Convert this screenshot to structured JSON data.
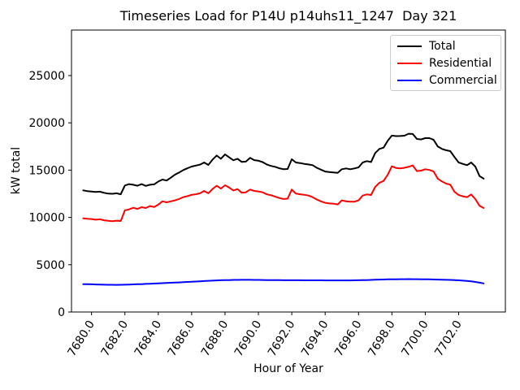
{
  "chart_data": {
    "type": "line",
    "title": "Timeseries Load for P14U p14uhs11_1247  Day 321",
    "xlabel": "Hour of Year",
    "ylabel": "kW total",
    "grid": false,
    "legend_position": "upper right",
    "legend_entries": [
      "Total",
      "Residential",
      "Commercial"
    ],
    "xlim": [
      7678.8,
      7704.8
    ],
    "ylim": [
      0,
      29810
    ],
    "xticks": {
      "values": [
        7680,
        7682,
        7684,
        7686,
        7688,
        7690,
        7692,
        7694,
        7696,
        7698,
        7700,
        7702
      ],
      "labels": [
        "7680.0",
        "7682.0",
        "7684.0",
        "7686.0",
        "7688.0",
        "7690.0",
        "7692.0",
        "7694.0",
        "7696.0",
        "7698.0",
        "7700.0",
        "7702.0"
      ]
    },
    "yticks": {
      "values": [
        0,
        5000,
        10000,
        15000,
        20000,
        25000
      ],
      "labels": [
        "0",
        "5000",
        "10000",
        "15000",
        "20000",
        "25000"
      ]
    },
    "x": [
      7679.5,
      7679.75,
      7680,
      7680.25,
      7680.5,
      7680.75,
      7681,
      7681.25,
      7681.5,
      7681.75,
      7682,
      7682.25,
      7682.5,
      7682.75,
      7683,
      7683.25,
      7683.5,
      7683.75,
      7684,
      7684.25,
      7684.5,
      7684.75,
      7685,
      7685.25,
      7685.5,
      7685.75,
      7686,
      7686.25,
      7686.5,
      7686.75,
      7687,
      7687.25,
      7687.5,
      7687.75,
      7688,
      7688.25,
      7688.5,
      7688.75,
      7689,
      7689.25,
      7689.5,
      7689.75,
      7690,
      7690.25,
      7690.5,
      7690.75,
      7691,
      7691.25,
      7691.5,
      7691.75,
      7692,
      7692.25,
      7692.5,
      7692.75,
      7693,
      7693.25,
      7693.5,
      7693.75,
      7694,
      7694.25,
      7694.5,
      7694.75,
      7695,
      7695.25,
      7695.5,
      7695.75,
      7696,
      7696.25,
      7696.5,
      7696.75,
      7697,
      7697.25,
      7697.5,
      7697.75,
      7698,
      7698.25,
      7698.5,
      7698.75,
      7699,
      7699.25,
      7699.5,
      7699.75,
      7700,
      7700.25,
      7700.5,
      7700.75,
      7701,
      7701.25,
      7701.5,
      7701.75,
      7702,
      7702.25,
      7702.5,
      7702.75,
      7703,
      7703.25,
      7703.5
    ],
    "series": [
      {
        "name": "Total",
        "color": "#000000",
        "values": [
          12860,
          12780,
          12740,
          12700,
          12720,
          12600,
          12520,
          12500,
          12550,
          12450,
          13380,
          13520,
          13450,
          13350,
          13520,
          13330,
          13450,
          13500,
          13800,
          14000,
          13900,
          14200,
          14520,
          14750,
          15010,
          15200,
          15380,
          15480,
          15580,
          15810,
          15550,
          16100,
          16550,
          16200,
          16670,
          16350,
          16050,
          16200,
          15870,
          15900,
          16300,
          16060,
          16000,
          15850,
          15600,
          15450,
          15350,
          15200,
          15100,
          15120,
          16150,
          15810,
          15750,
          15660,
          15600,
          15520,
          15250,
          15050,
          14850,
          14800,
          14750,
          14720,
          15090,
          15180,
          15090,
          15180,
          15290,
          15810,
          15950,
          15860,
          16810,
          17240,
          17380,
          18100,
          18650,
          18600,
          18610,
          18640,
          18850,
          18820,
          18300,
          18250,
          18380,
          18380,
          18200,
          17500,
          17240,
          17100,
          17010,
          16380,
          15810,
          15660,
          15520,
          15810,
          15380,
          14370,
          14100
        ]
      },
      {
        "name": "Residential",
        "color": "#ff0000",
        "values": [
          9900,
          9850,
          9830,
          9760,
          9800,
          9700,
          9640,
          9600,
          9660,
          9620,
          10750,
          10850,
          11020,
          10900,
          11080,
          11000,
          11200,
          11100,
          11350,
          11700,
          11600,
          11700,
          11800,
          11950,
          12150,
          12250,
          12400,
          12450,
          12550,
          12800,
          12550,
          13000,
          13350,
          13050,
          13400,
          13150,
          12850,
          13000,
          12600,
          12650,
          12950,
          12800,
          12750,
          12650,
          12450,
          12350,
          12200,
          12050,
          11950,
          11980,
          12950,
          12520,
          12450,
          12400,
          12310,
          12140,
          11900,
          11700,
          11550,
          11480,
          11450,
          11370,
          11800,
          11700,
          11660,
          11660,
          11800,
          12310,
          12430,
          12370,
          13230,
          13660,
          13860,
          14520,
          15400,
          15220,
          15180,
          15250,
          15350,
          15500,
          14900,
          14950,
          15090,
          15020,
          14850,
          14100,
          13800,
          13570,
          13460,
          12710,
          12370,
          12230,
          12140,
          12430,
          11940,
          11230,
          11000
        ]
      },
      {
        "name": "Commercial",
        "color": "#0000ff",
        "values": [
          2950,
          2940,
          2930,
          2915,
          2900,
          2890,
          2880,
          2875,
          2870,
          2880,
          2890,
          2905,
          2920,
          2935,
          2950,
          2970,
          2990,
          3010,
          3030,
          3050,
          3070,
          3090,
          3110,
          3130,
          3150,
          3175,
          3200,
          3225,
          3250,
          3275,
          3300,
          3320,
          3340,
          3355,
          3370,
          3380,
          3390,
          3395,
          3400,
          3400,
          3400,
          3395,
          3390,
          3385,
          3380,
          3375,
          3370,
          3365,
          3360,
          3360,
          3360,
          3358,
          3355,
          3352,
          3350,
          3350,
          3350,
          3348,
          3345,
          3342,
          3340,
          3340,
          3340,
          3342,
          3345,
          3352,
          3360,
          3370,
          3380,
          3395,
          3410,
          3425,
          3440,
          3450,
          3460,
          3465,
          3470,
          3472,
          3475,
          3473,
          3470,
          3465,
          3460,
          3450,
          3440,
          3430,
          3420,
          3405,
          3390,
          3370,
          3350,
          3320,
          3290,
          3235,
          3180,
          3100,
          3020
        ]
      }
    ]
  }
}
